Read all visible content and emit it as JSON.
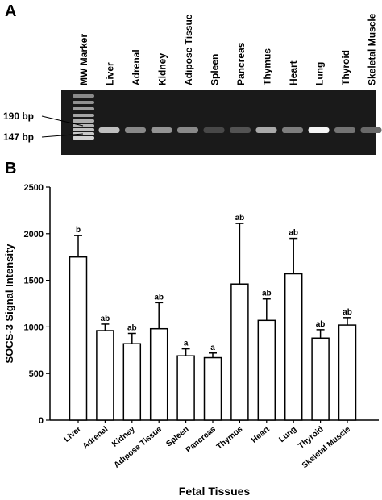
{
  "panel_a": {
    "label": "A",
    "lanes": [
      "MW Marker",
      "Liver",
      "Adrenal",
      "Kidney",
      "Adipose Tissue",
      "Spleen",
      "Pancreas",
      "Thymus",
      "Heart",
      "Lung",
      "Thyroid",
      "Skeletal Muscle"
    ],
    "marker_labels": [
      "190 bp",
      "147 bp"
    ],
    "band_intensity": [
      null,
      0.7,
      0.45,
      0.5,
      0.45,
      0.15,
      0.2,
      0.6,
      0.4,
      0.95,
      0.35,
      0.3
    ]
  },
  "panel_b": {
    "label": "B"
  },
  "chart_data": {
    "type": "bar",
    "title": "",
    "xlabel": "Fetal Tissues",
    "ylabel": "SOCS-3 Signal Intensity",
    "ylim": [
      0,
      2500
    ],
    "yticks": [
      0,
      500,
      1000,
      1500,
      2000,
      2500
    ],
    "grid": false,
    "categories": [
      "Liver",
      "Adrenal",
      "Kidney",
      "Adipose Tissue",
      "Spleen",
      "Pancreas",
      "Thymus",
      "Heart",
      "Lung",
      "Thyroid",
      "Skeletal Muscle"
    ],
    "values": [
      1750,
      960,
      820,
      980,
      690,
      670,
      1460,
      1070,
      1570,
      880,
      1020
    ],
    "errors": [
      230,
      70,
      110,
      280,
      75,
      50,
      650,
      230,
      380,
      90,
      80
    ],
    "group_labels": [
      "b",
      "ab",
      "ab",
      "ab",
      "a",
      "a",
      "ab",
      "ab",
      "ab",
      "ab",
      "ab"
    ]
  }
}
